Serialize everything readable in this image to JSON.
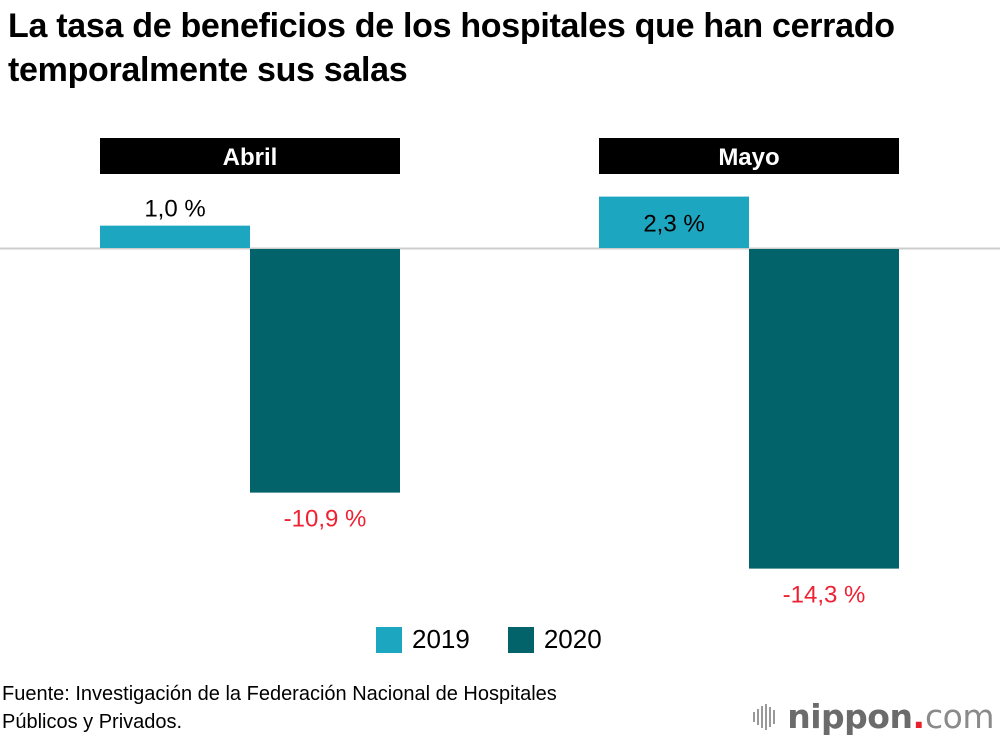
{
  "title": "La tasa de beneficios de los hospitales que han cerrado temporalmente sus salas",
  "chart_data": {
    "type": "bar",
    "title": "La tasa de beneficios de los hospitales que han cerrado temporalmente sus salas",
    "categories": [
      "Abril",
      "Mayo"
    ],
    "series": [
      {
        "name": "2019",
        "color": "#1da6bf",
        "values": [
          1.0,
          2.3
        ],
        "labels": [
          "1,0 %",
          "2,3 %"
        ],
        "label_color": "#000000"
      },
      {
        "name": "2020",
        "color": "#02636b",
        "values": [
          -10.9,
          -14.3
        ],
        "labels": [
          "-10,9 %",
          "-14,3 %"
        ],
        "label_color": "#ee2233"
      }
    ],
    "unit": "%",
    "xlabel": "",
    "ylabel": "",
    "ylim": [
      -15,
      2.5
    ],
    "grid": false,
    "legend": "bottom-center",
    "baseline_color": "#cccccc",
    "category_header_color": "#000000",
    "category_header_text_color": "#ffffff"
  },
  "legend": {
    "items": [
      {
        "label": "2019",
        "color": "#1da6bf"
      },
      {
        "label": "2020",
        "color": "#02636b"
      }
    ]
  },
  "source": {
    "line1": "Fuente: Investigación de la Federación Nacional de Hospitales",
    "line2": "Públicos y Privados."
  },
  "logo": {
    "word": "nippon",
    "dot": ".",
    "tld": "com",
    "accent_color": "#e8202a"
  }
}
